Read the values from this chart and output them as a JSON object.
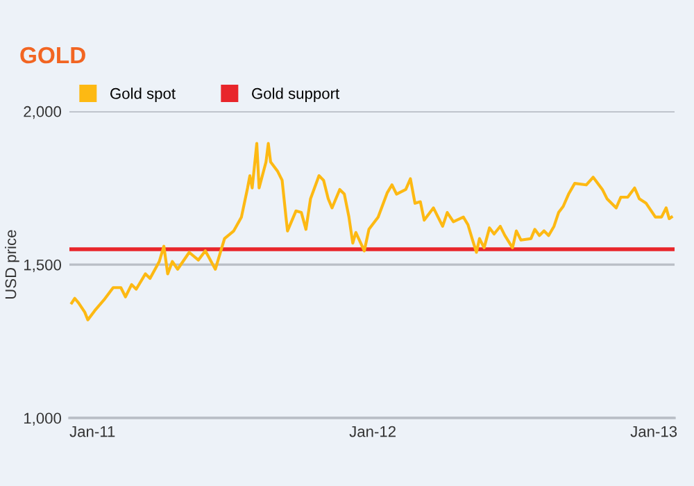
{
  "chart_data": {
    "type": "line",
    "title": "GOLD",
    "ylabel": "USD price",
    "x": [
      "2010-12-05",
      "2010-12-09",
      "2010-12-14",
      "2010-12-22",
      "2010-12-26",
      "2011-01-04",
      "2011-01-16",
      "2011-01-28",
      "2011-02-07",
      "2011-02-13",
      "2011-02-21",
      "2011-02-27",
      "2011-03-11",
      "2011-03-17",
      "2011-03-29",
      "2011-04-04",
      "2011-04-09",
      "2011-04-15",
      "2011-04-22",
      "2011-05-07",
      "2011-05-19",
      "2011-05-28",
      "2011-06-10",
      "2011-06-22",
      "2011-07-04",
      "2011-07-14",
      "2011-07-22",
      "2011-07-25",
      "2011-07-28",
      "2011-08-03",
      "2011-08-06",
      "2011-08-15",
      "2011-08-18",
      "2011-08-21",
      "2011-08-30",
      "2011-09-05",
      "2011-09-10",
      "2011-09-12",
      "2011-09-23",
      "2011-09-30",
      "2011-10-06",
      "2011-10-12",
      "2011-10-23",
      "2011-10-29",
      "2011-11-04",
      "2011-11-09",
      "2011-11-19",
      "2011-11-25",
      "2011-12-01",
      "2011-12-06",
      "2011-12-10",
      "2011-12-21",
      "2011-12-27",
      "2012-01-08",
      "2012-01-20",
      "2012-01-26",
      "2012-02-01",
      "2012-02-13",
      "2012-02-19",
      "2012-02-25",
      "2012-03-03",
      "2012-03-08",
      "2012-03-20",
      "2012-04-01",
      "2012-04-07",
      "2012-04-15",
      "2012-04-28",
      "2012-05-04",
      "2012-05-10",
      "2012-05-15",
      "2012-05-19",
      "2012-05-25",
      "2012-06-01",
      "2012-06-07",
      "2012-06-15",
      "2012-06-21",
      "2012-07-01",
      "2012-07-06",
      "2012-07-12",
      "2012-07-25",
      "2012-07-30",
      "2012-08-05",
      "2012-08-11",
      "2012-08-17",
      "2012-08-24",
      "2012-08-30",
      "2012-09-05",
      "2012-09-12",
      "2012-09-20",
      "2012-10-05",
      "2012-10-14",
      "2012-10-26",
      "2012-11-01",
      "2012-11-13",
      "2012-11-19",
      "2012-11-28",
      "2012-12-07",
      "2012-12-13",
      "2012-12-22",
      "2013-01-03",
      "2013-01-11",
      "2013-01-17",
      "2013-01-21",
      "2013-01-24"
    ],
    "series": [
      {
        "name": "Gold spot",
        "color": "#fdb913",
        "values": [
          1375,
          1390,
          1375,
          1345,
          1320,
          1350,
          1385,
          1425,
          1425,
          1395,
          1435,
          1420,
          1470,
          1455,
          1510,
          1560,
          1470,
          1510,
          1485,
          1540,
          1515,
          1545,
          1485,
          1585,
          1610,
          1655,
          1750,
          1790,
          1750,
          1895,
          1750,
          1835,
          1895,
          1835,
          1805,
          1775,
          1655,
          1610,
          1675,
          1670,
          1615,
          1715,
          1790,
          1775,
          1715,
          1685,
          1745,
          1730,
          1655,
          1570,
          1605,
          1545,
          1615,
          1655,
          1735,
          1760,
          1730,
          1745,
          1780,
          1700,
          1705,
          1645,
          1685,
          1625,
          1670,
          1640,
          1655,
          1630,
          1580,
          1540,
          1585,
          1555,
          1620,
          1600,
          1625,
          1595,
          1555,
          1610,
          1580,
          1585,
          1615,
          1595,
          1610,
          1595,
          1625,
          1670,
          1690,
          1730,
          1765,
          1760,
          1785,
          1745,
          1715,
          1685,
          1720,
          1720,
          1750,
          1715,
          1700,
          1655,
          1655,
          1685,
          1650,
          1655
        ]
      }
    ],
    "ref_lines": [
      {
        "axis": "y",
        "value": 1550,
        "label": "Gold support",
        "color": "#e8262b"
      }
    ],
    "xlim": [
      "2010-12-02",
      "2013-01-28"
    ],
    "xticks": [
      {
        "value": "2011-01-01",
        "label": "Jan-11"
      },
      {
        "value": "2012-01-01",
        "label": "Jan-12"
      },
      {
        "value": "2013-01-01",
        "label": "Jan-13"
      }
    ],
    "ylim": [
      1000,
      2000
    ],
    "yticks": [
      {
        "value": 1000,
        "label": "1,000"
      },
      {
        "value": 1500,
        "label": "1,500"
      },
      {
        "value": 2000,
        "label": "2,000"
      }
    ],
    "grid": "y",
    "legend": "top left",
    "marker": "none",
    "line_style": "solid"
  }
}
